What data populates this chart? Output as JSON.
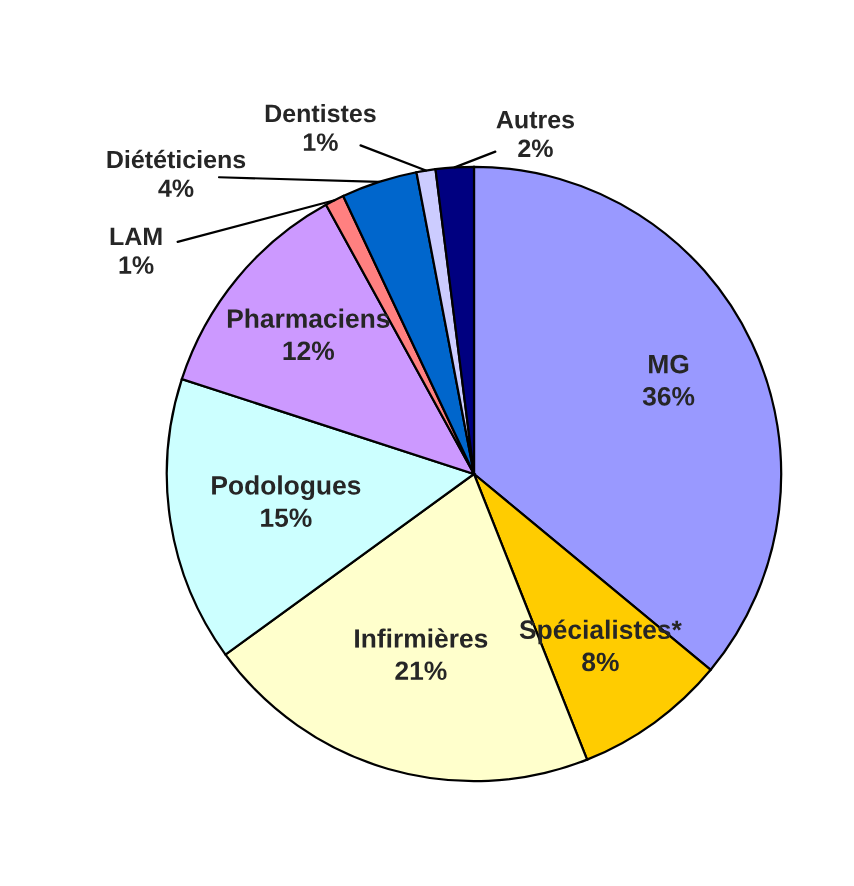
{
  "chart_data": {
    "type": "pie",
    "categories": [
      "MG",
      "Spécialistes*",
      "Infirmières",
      "Podologues",
      "Pharmaciens",
      "LAM",
      "Diététiciens",
      "Dentistes",
      "Autres"
    ],
    "values": [
      36,
      8,
      21,
      15,
      12,
      1,
      4,
      1,
      2
    ],
    "colors": [
      "#9999ff",
      "#ffcc00",
      "#ffffcc",
      "#ccffff",
      "#cc99ff",
      "#ff8080",
      "#0066cc",
      "#ccccff",
      "#000080"
    ],
    "value_labels": [
      "36%",
      "8%",
      "21%",
      "15%",
      "12%",
      "1%",
      "4%",
      "1%",
      "2%"
    ]
  }
}
